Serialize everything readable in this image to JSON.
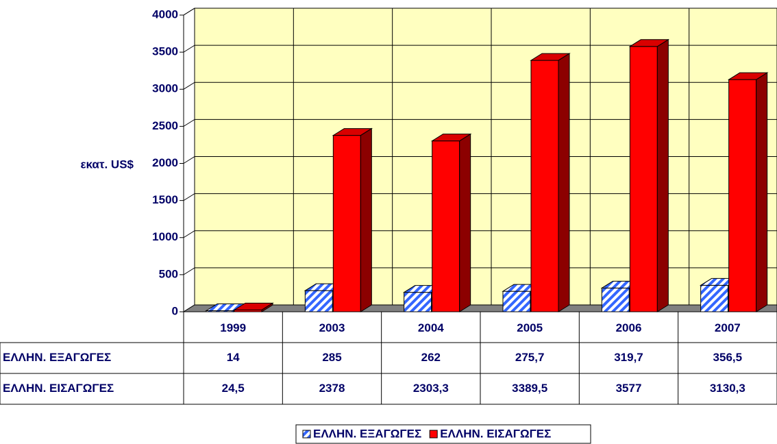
{
  "chart_data": {
    "type": "bar3d",
    "y_axis_label": "εκατ. US$",
    "categories": [
      "1999",
      "2003",
      "2004",
      "2005",
      "2006",
      "2007"
    ],
    "series": [
      {
        "name": "ΕΛΛΗΝ. ΕΞΑΓΩΓΕΣ",
        "color": "#3366ff",
        "pattern": "hatch",
        "values": [
          14,
          285,
          262,
          275.7,
          319.7,
          356.5
        ],
        "value_labels": [
          "14",
          "285",
          "262",
          "275,7",
          "319,7",
          "356,5"
        ]
      },
      {
        "name": "ΕΛΛΗΝ. ΕΙΣΑΓΩΓΕΣ",
        "color": "#ff0000",
        "values": [
          24.5,
          2378,
          2303.3,
          3389.5,
          3577,
          3130.3
        ],
        "value_labels": [
          "24,5",
          "2378",
          "2303,3",
          "3389,5",
          "3577",
          "3130,3"
        ]
      }
    ],
    "ylim": [
      0,
      4000
    ],
    "yticks": [
      0,
      500,
      1000,
      1500,
      2000,
      2500,
      3000,
      3500,
      4000
    ],
    "grid": true,
    "legend": "bottom",
    "data_table": true
  }
}
